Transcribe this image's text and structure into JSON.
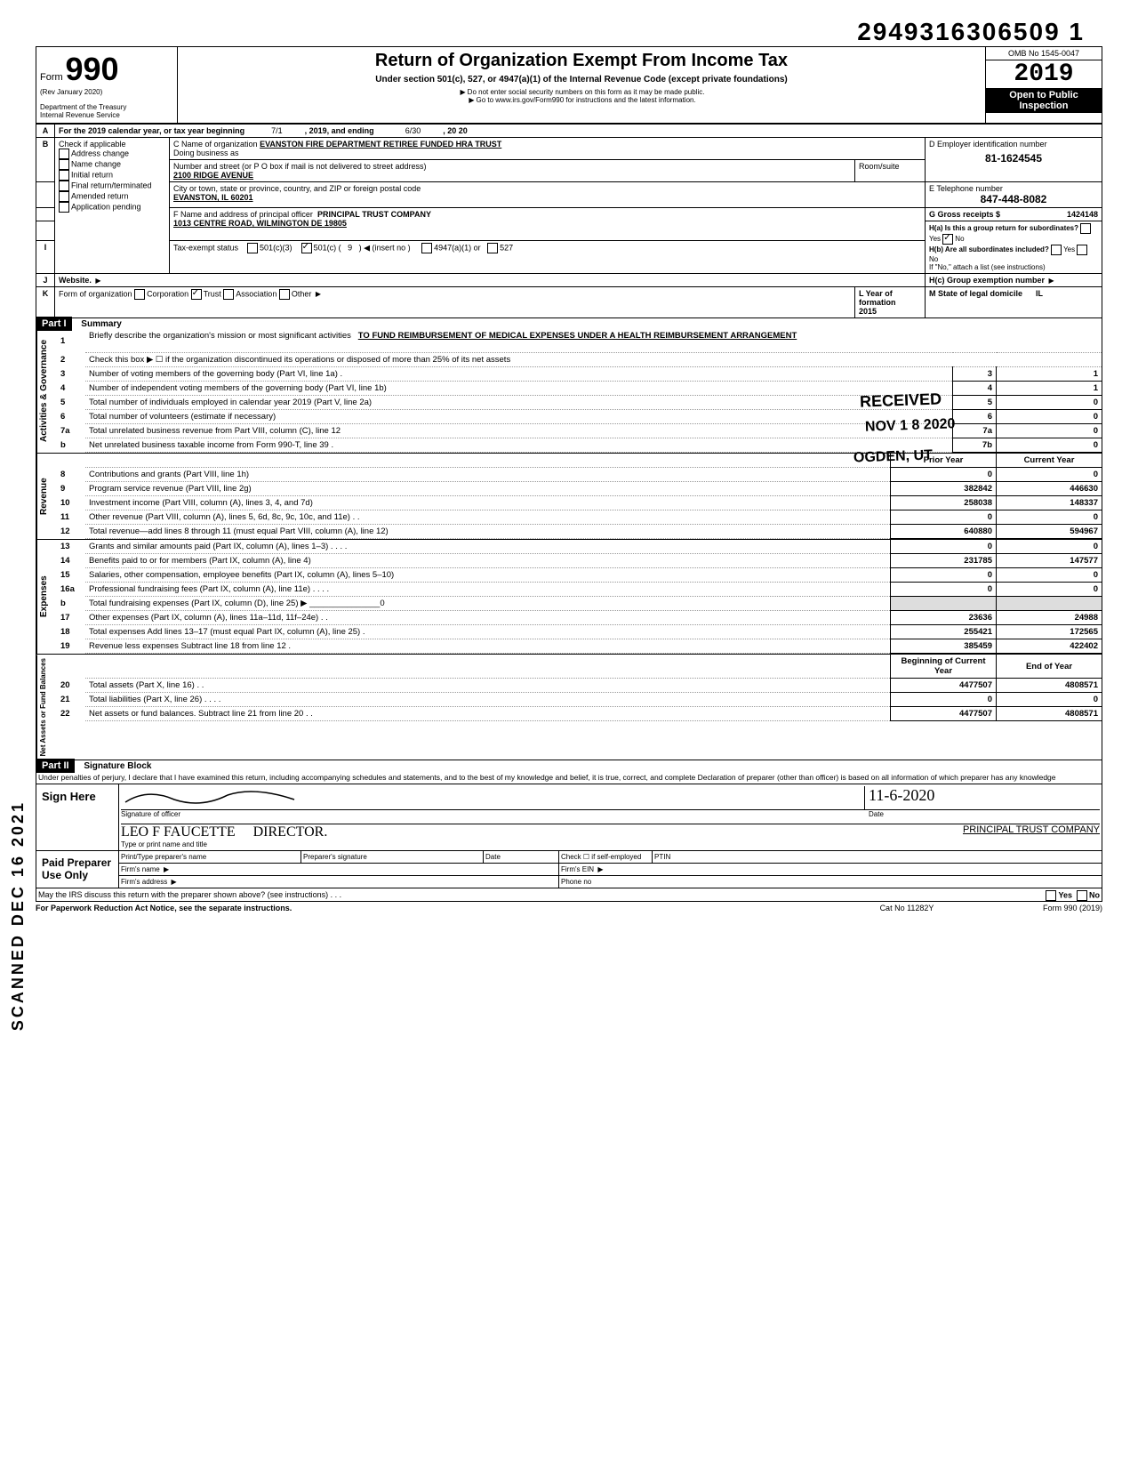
{
  "doc_id": "29493163065091",
  "doc_id_spaced": "2949316306509 1",
  "form_number_prefix": "Form",
  "form_number": "990",
  "rev": "(Rev  January 2020)",
  "dept": "Department of the Treasury",
  "irs": "Internal Revenue Service",
  "title": "Return of Organization Exempt From Income Tax",
  "subtitle": "Under section 501(c), 527, or 4947(a)(1) of the Internal Revenue Code (except private foundations)",
  "note1": "Do not enter social security numbers on this form as it may be made public.",
  "note2": "Go to www.irs.gov/Form990 for instructions and the latest information.",
  "omb": "OMB No 1545-0047",
  "year": "2019",
  "open_public1": "Open to Public",
  "open_public2": "Inspection",
  "line_a": "For the 2019 calendar year, or tax year beginning",
  "period_start": "7/1",
  "period_mid": ", 2019, and ending",
  "period_end": "6/30",
  "period_year": ", 20  20",
  "b_label": "Check if applicable",
  "b_opts": [
    "Address change",
    "Name change",
    "Initial return",
    "Final return/terminated",
    "Amended return",
    "Application pending"
  ],
  "c_label": "C Name of organization",
  "c_value": "EVANSTON FIRE DEPARTMENT RETIREE FUNDED HRA TRUST",
  "dba": "Doing business as",
  "street_label": "Number and street (or P O  box if mail is not delivered to street address)",
  "street_value": "2100 RIDGE AVENUE",
  "room_label": "Room/suite",
  "city_label": "City or town, state or province, country, and ZIP or foreign postal code",
  "city_value": "EVANSTON, IL 60201",
  "f_label": "F Name and address of principal officer",
  "f_value": "PRINCIPAL TRUST COMPANY",
  "f_addr": "1013 CENTRE ROAD, WILMINGTON DE 19805",
  "d_label": "D Employer identification number",
  "d_value": "81-1624545",
  "e_label": "E Telephone number",
  "e_value": "847-448-8082",
  "g_label": "G Gross receipts $",
  "g_value": "1424148",
  "ha_label": "H(a) Is this a group return for subordinates?",
  "hb_label": "H(b) Are all subordinates included?",
  "h_note": "If \"No,\" attach a list (see instructions)",
  "hc_label": "H(c) Group exemption number",
  "yes": "Yes",
  "no": "No",
  "i_label": "Tax-exempt status",
  "i_opts": {
    "c3": "501(c)(3)",
    "c": "501(c) (",
    "c_num": "9",
    "insert": ")  ◀ (insert no )",
    "a1": "4947(a)(1) or",
    "527": "527"
  },
  "j_label": "Website.",
  "k_label": "Form of organization",
  "k_opts": [
    "Corporation",
    "Trust",
    "Association",
    "Other"
  ],
  "l_label": "L Year of formation",
  "l_value": "2015",
  "m_label": "M State of legal domicile",
  "m_value": "IL",
  "part1": "Part I",
  "part1_title": "Summary",
  "part2": "Part II",
  "part2_title": "Signature Block",
  "vert_labels": {
    "gov": "Activities & Governance",
    "rev": "Revenue",
    "exp": "Expenses",
    "net": "Net Assets or Fund Balances"
  },
  "summary": {
    "l1_label": "Briefly describe the organization's mission or most significant activities",
    "l1_value": "TO FUND REIMBURSEMENT OF MEDICAL EXPENSES UNDER A HEALTH REIMBURSEMENT ARRANGEMENT",
    "l2": "Check this box ▶ ☐ if the organization discontinued its operations or disposed of more than 25% of its net assets",
    "l3": "Number of voting members of the governing body (Part VI, line 1a) .",
    "l3v": "1",
    "l4": "Number of independent voting members of the governing body (Part VI, line 1b)",
    "l4v": "1",
    "l5": "Total number of individuals employed in calendar year 2019 (Part V, line 2a)",
    "l5v": "0",
    "l6": "Total number of volunteers (estimate if necessary)",
    "l6v": "0",
    "l7a": "Total unrelated business revenue from Part VIII, column (C), line 12",
    "l7av": "0",
    "l7b": "Net unrelated business taxable income from Form 990-T, line 39  .",
    "l7bv": "0"
  },
  "stamps": {
    "received": "RECEIVED",
    "date": "NOV 1 8 2020",
    "ogden": "OGDEN, UT",
    "scanned": "SCANNED DEC 16 2021"
  },
  "cols": {
    "prior": "Prior Year",
    "current": "Current Year",
    "begin": "Beginning of Current Year",
    "end": "End of Year"
  },
  "rev_lines": [
    {
      "n": "8",
      "t": "Contributions and grants (Part VIII, line 1h)",
      "p": "0",
      "c": "0"
    },
    {
      "n": "9",
      "t": "Program service revenue (Part VIII, line 2g)",
      "p": "382842",
      "c": "446630"
    },
    {
      "n": "10",
      "t": "Investment income (Part VIII, column (A), lines 3, 4, and 7d)",
      "p": "258038",
      "c": "148337"
    },
    {
      "n": "11",
      "t": "Other revenue (Part VIII, column (A), lines 5, 6d, 8c, 9c, 10c, and 11e) .  .",
      "p": "0",
      "c": "0"
    },
    {
      "n": "12",
      "t": "Total revenue—add lines 8 through 11 (must equal Part VIII, column (A), line 12)",
      "p": "640880",
      "c": "594967"
    }
  ],
  "exp_lines": [
    {
      "n": "13",
      "t": "Grants and similar amounts paid (Part IX, column (A), lines 1–3) .   .   .   .",
      "p": "0",
      "c": "0"
    },
    {
      "n": "14",
      "t": "Benefits paid to or for members (Part IX, column (A), line 4)",
      "p": "231785",
      "c": "147577"
    },
    {
      "n": "15",
      "t": "Salaries, other compensation, employee benefits (Part IX, column (A), lines 5–10)",
      "p": "0",
      "c": "0"
    },
    {
      "n": "16a",
      "t": "Professional fundraising fees (Part IX, column (A),  line 11e)   .    .    .    .",
      "p": "0",
      "c": "0"
    },
    {
      "n": "b",
      "t": "Total fundraising expenses (Part IX, column (D), line 25) ▶ _______________0",
      "p": "",
      "c": ""
    },
    {
      "n": "17",
      "t": "Other expenses (Part IX, column (A), lines 11a–11d, 11f–24e)    .       .",
      "p": "23636",
      "c": "24988"
    },
    {
      "n": "18",
      "t": "Total expenses  Add lines 13–17 (must equal Part IX, column (A), line 25)   .",
      "p": "255421",
      "c": "172565"
    },
    {
      "n": "19",
      "t": "Revenue less expenses  Subtract line 18 from line 12   .",
      "p": "385459",
      "c": "422402"
    }
  ],
  "net_lines": [
    {
      "n": "20",
      "t": "Total assets (Part X, line 16)    .        .",
      "p": "4477507",
      "c": "4808571"
    },
    {
      "n": "21",
      "t": "Total liabilities (Part X, line 26)    .   .   .   .",
      "p": "0",
      "c": "0"
    },
    {
      "n": "22",
      "t": "Net assets or fund balances. Subtract line 21 from line 20   .    .",
      "p": "4477507",
      "c": "4808571"
    }
  ],
  "sig": {
    "perjury": "Under penalties of perjury, I declare that I have examined this return, including accompanying schedules and statements, and to the best of my knowledge  and belief, it is true, correct, and complete  Declaration of preparer (other than officer) is based on all information of which preparer has any knowledge",
    "sign_here": "Sign Here",
    "sig_label": "Signature of officer",
    "date_label": "Date",
    "date_value": "11-6-2020",
    "name_label": "Type or print name and title",
    "name_value": "LEO F FAUCETTE",
    "title_value": "DIRECTOR.",
    "company": "PRINCIPAL TRUST COMPANY",
    "paid": "Paid Preparer Use Only",
    "prep_name": "Print/Type preparer's name",
    "prep_sig": "Preparer's signature",
    "check_self": "Check ☐ if self-employed",
    "ptin": "PTIN",
    "firm_name": "Firm's name",
    "firm_ein": "Firm's EIN",
    "firm_addr": "Firm's address",
    "phone": "Phone no",
    "discuss": "May the IRS discuss this return with the preparer shown above? (see instructions)    .        .        .",
    "paperwork": "For Paperwork Reduction Act Notice, see the separate instructions.",
    "cat": "Cat No 11282Y",
    "form_foot": "Form 990 (2019)"
  },
  "small_nums": {
    "n3": "3",
    "n4": "4",
    "n5": "5",
    "n6": "6",
    "n7a": "7a",
    "n7b": "7b"
  }
}
